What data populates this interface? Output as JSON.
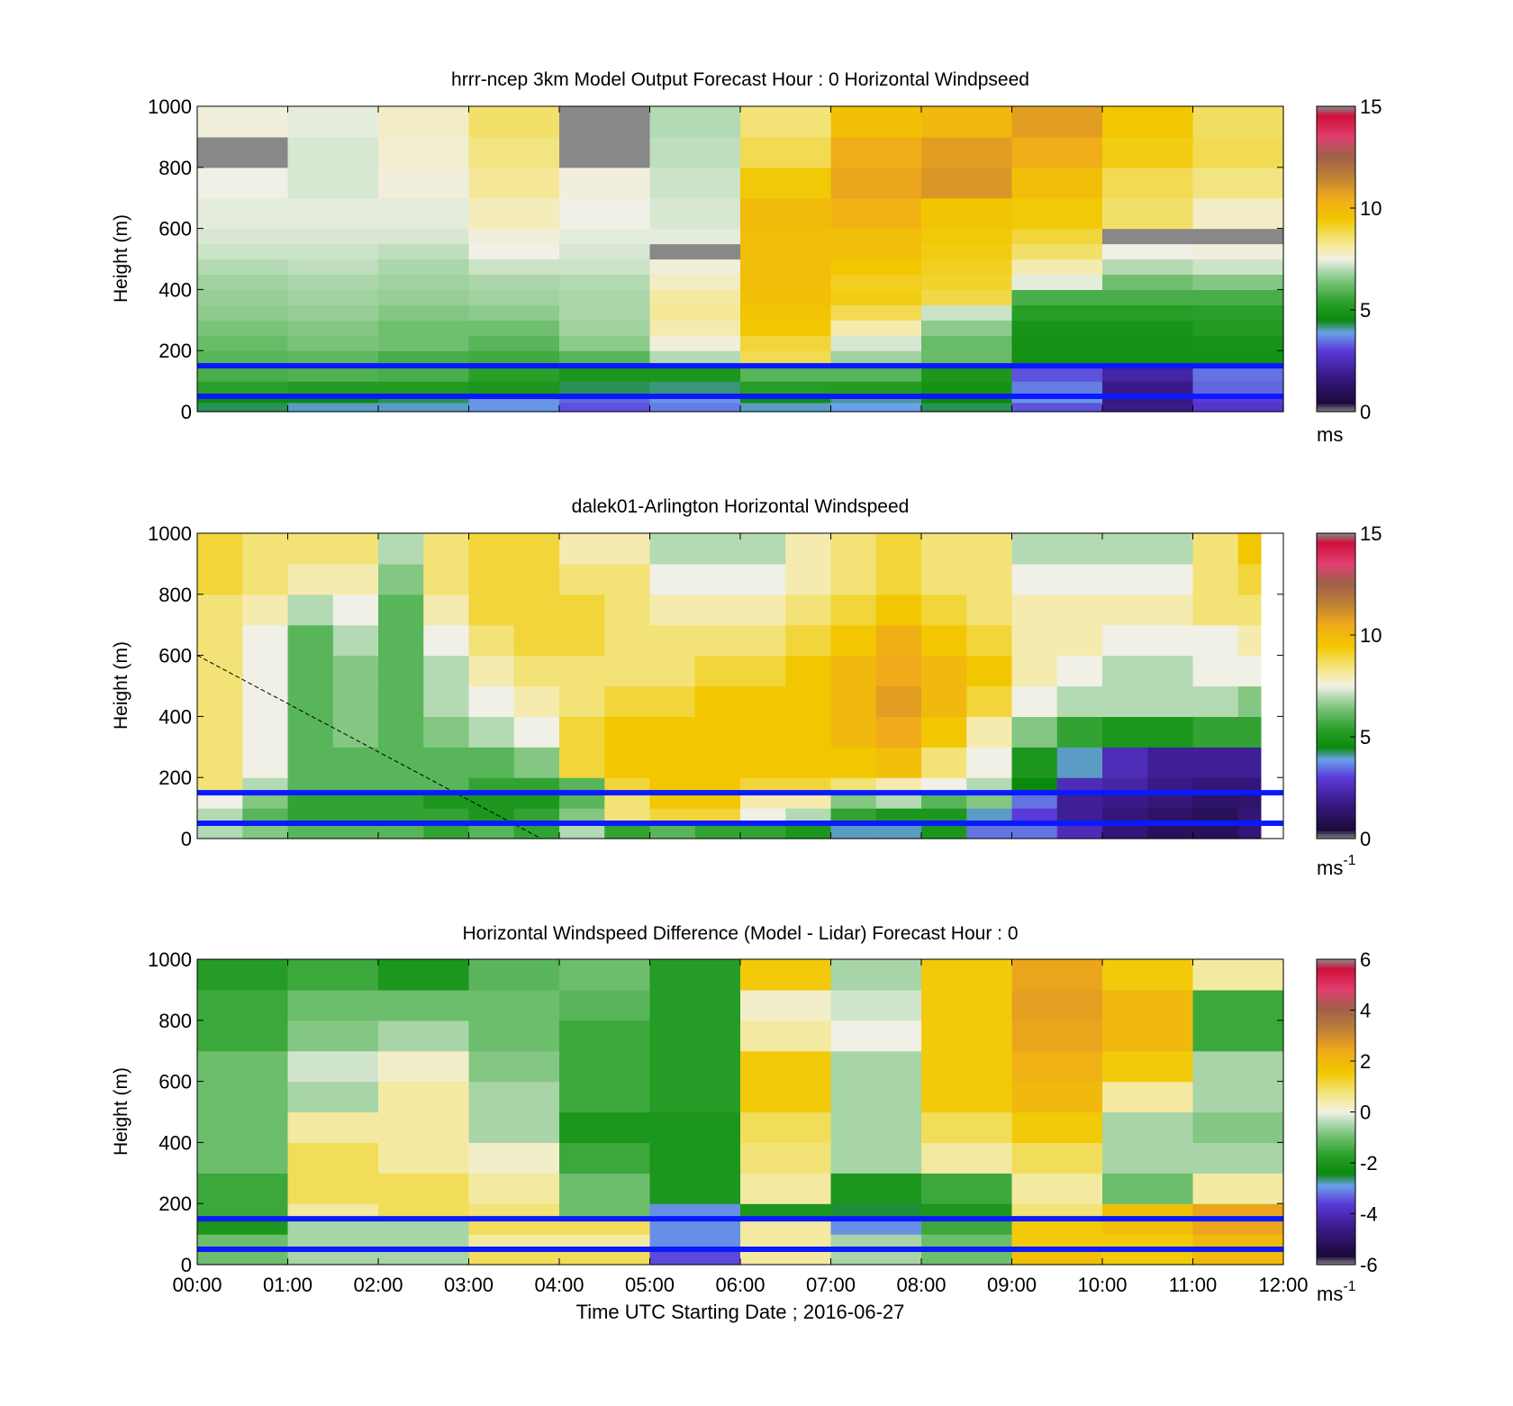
{
  "figure": {
    "xticks": [
      "00:00",
      "01:00",
      "02:00",
      "03:00",
      "04:00",
      "05:00",
      "06:00",
      "07:00",
      "08:00",
      "09:00",
      "10:00",
      "11:00",
      "12:00"
    ],
    "xlabel": "Time UTC  Starting Date ; 2016-06-27"
  },
  "colormap": [
    [
      0,
      "#888888"
    ],
    [
      0.03,
      "#1a0a3a"
    ],
    [
      0.12,
      "#3a1a88"
    ],
    [
      0.2,
      "#5a3ad8"
    ],
    [
      0.26,
      "#6aa0e8"
    ],
    [
      0.3,
      "#0a8a0a"
    ],
    [
      0.36,
      "#2aa02a"
    ],
    [
      0.42,
      "#70bf70"
    ],
    [
      0.47,
      "#b8dcb8"
    ],
    [
      0.5,
      "#f0f0e6"
    ],
    [
      0.53,
      "#f5ecb4"
    ],
    [
      0.58,
      "#f2de60"
    ],
    [
      0.63,
      "#f2c800"
    ],
    [
      0.7,
      "#f0aa1a"
    ],
    [
      0.78,
      "#b87a3a"
    ],
    [
      0.84,
      "#a0604a"
    ],
    [
      0.9,
      "#e04070"
    ],
    [
      0.97,
      "#d0103a"
    ],
    [
      1,
      "#888888"
    ]
  ],
  "chart_data": [
    {
      "type": "heatmap",
      "title": "hrrr-ncep 3km Model Output   Forecast Hour : 0 Horizontal Windpseed",
      "ylabel": "Height (m)",
      "ylim": [
        0,
        1000
      ],
      "yticks": [
        "0",
        "200",
        "400",
        "600",
        "800",
        "1000"
      ],
      "colorbar": {
        "range": [
          0,
          15
        ],
        "ticks": [
          "0",
          "5",
          "10",
          "15"
        ],
        "unit": "ms"
      },
      "reference_lines_m": [
        150,
        50
      ],
      "x_start_hours": [
        0,
        1,
        2,
        3,
        4,
        5,
        6,
        7,
        8,
        9,
        10,
        11
      ],
      "y_edges_m": [
        0,
        30,
        60,
        100,
        150,
        200,
        250,
        300,
        350,
        400,
        450,
        500,
        550,
        600,
        700,
        800,
        900,
        1000
      ],
      "values": [
        [
          4.3,
          4.0,
          4.0,
          3.8,
          3.2,
          3.6,
          4.0,
          3.9,
          4.3,
          3.2,
          1.8,
          2.8
        ],
        [
          4.6,
          4.5,
          4.3,
          3.8,
          3.4,
          3.8,
          4.6,
          4.1,
          4.5,
          3.8,
          1.6,
          3.0
        ],
        [
          5.4,
          5.2,
          5.2,
          5.0,
          4.3,
          4.2,
          5.3,
          5.2,
          4.8,
          3.6,
          1.8,
          3.4
        ],
        [
          5.8,
          5.9,
          5.8,
          5.4,
          5.0,
          5.0,
          6.0,
          6.0,
          5.0,
          3.2,
          2.2,
          3.5
        ],
        [
          6.0,
          6.1,
          5.8,
          5.7,
          6.0,
          7.0,
          8.8,
          6.8,
          6.2,
          4.8,
          4.8,
          4.8
        ],
        [
          6.2,
          6.4,
          6.3,
          6.0,
          6.6,
          7.6,
          9.0,
          7.3,
          6.2,
          4.8,
          4.8,
          4.9
        ],
        [
          6.4,
          6.5,
          6.3,
          6.3,
          6.8,
          8.0,
          9.5,
          8.0,
          6.6,
          4.9,
          4.9,
          5.2
        ],
        [
          6.6,
          6.7,
          6.5,
          6.6,
          6.9,
          8.2,
          9.6,
          8.8,
          7.2,
          5.3,
          5.3,
          5.4
        ],
        [
          6.7,
          6.8,
          6.7,
          6.8,
          6.9,
          8.1,
          9.7,
          9.3,
          8.9,
          5.8,
          5.8,
          5.8
        ],
        [
          6.8,
          6.9,
          6.8,
          6.9,
          7.0,
          7.8,
          9.8,
          9.2,
          9.1,
          7.4,
          6.3,
          6.5
        ],
        [
          7.0,
          7.1,
          6.9,
          7.2,
          7.2,
          7.6,
          9.8,
          9.5,
          9.2,
          8.0,
          7.0,
          7.2
        ],
        [
          7.2,
          7.2,
          7.1,
          7.5,
          7.3,
          15.0,
          9.8,
          9.8,
          9.3,
          8.6,
          7.5,
          7.6
        ],
        [
          7.3,
          7.3,
          7.3,
          7.6,
          7.4,
          7.4,
          9.8,
          9.8,
          9.4,
          9.0,
          15.0,
          15.0
        ],
        [
          7.4,
          7.4,
          7.4,
          7.9,
          7.5,
          7.3,
          9.9,
          10.2,
          9.6,
          9.4,
          8.6,
          7.8
        ],
        [
          7.5,
          7.3,
          7.6,
          8.2,
          7.6,
          7.2,
          9.4,
          10.6,
          11.0,
          9.8,
          8.8,
          8.4
        ],
        [
          15.0,
          7.3,
          7.7,
          8.4,
          15.0,
          7.1,
          8.8,
          10.4,
          10.8,
          10.4,
          9.3,
          8.8
        ],
        [
          7.6,
          7.4,
          7.8,
          8.6,
          15.0,
          7.0,
          8.5,
          9.7,
          10.0,
          10.8,
          9.5,
          8.7
        ]
      ]
    },
    {
      "type": "heatmap",
      "title": "dalek01-Arlington  Horizontal Windspeed",
      "ylabel": "Height (m)",
      "ylim": [
        0,
        1000
      ],
      "yticks": [
        "0",
        "200",
        "400",
        "600",
        "800",
        "1000"
      ],
      "colorbar": {
        "range": [
          0,
          15
        ],
        "ticks": [
          "0",
          "5",
          "10",
          "15"
        ],
        "unit": "ms",
        "unit_exponent": "-1"
      },
      "reference_lines_m": [
        150,
        50
      ],
      "dashed_line": {
        "x_hours": [
          0,
          3.8
        ],
        "y_m": [
          600,
          0
        ]
      },
      "x_start_hours": [
        0,
        0.5,
        1,
        1.5,
        2,
        2.5,
        3,
        3.5,
        4,
        4.5,
        5,
        5.5,
        6,
        6.5,
        7,
        7.5,
        8,
        8.5,
        9,
        9.5,
        10,
        10.5,
        11,
        11.5
      ],
      "x_end_hour": 11.75,
      "y_edges_m": [
        0,
        50,
        100,
        150,
        200,
        300,
        400,
        500,
        600,
        700,
        800,
        900,
        1000
      ],
      "values": [
        [
          7.0,
          6.5,
          6.0,
          6.0,
          6.0,
          5.5,
          6.0,
          5.5,
          7.0,
          5.5,
          6.0,
          5.5,
          5.5,
          5.0,
          4.0,
          4.0,
          5.0,
          3.5,
          3.5,
          2.5,
          1.5,
          1.0,
          1.0,
          1.5
        ],
        [
          7.0,
          6.0,
          5.5,
          5.5,
          5.5,
          5.5,
          5.0,
          5.5,
          6.5,
          8.5,
          9.0,
          9.0,
          7.5,
          7.0,
          5.5,
          5.0,
          5.0,
          4.0,
          3.0,
          2.0,
          1.5,
          1.2,
          1.0,
          1.5
        ],
        [
          7.5,
          6.5,
          5.5,
          5.5,
          5.5,
          5.0,
          5.0,
          5.0,
          6.0,
          8.5,
          9.5,
          9.5,
          8.0,
          8.0,
          6.5,
          7.0,
          6.0,
          6.5,
          3.5,
          2.0,
          1.8,
          1.5,
          1.2,
          1.3
        ],
        [
          8.5,
          7.0,
          6.0,
          6.0,
          6.0,
          6.0,
          5.5,
          5.5,
          6.0,
          9.0,
          9.5,
          9.5,
          9.0,
          9.0,
          8.5,
          8.0,
          7.5,
          7.0,
          4.5,
          2.5,
          2.2,
          1.8,
          1.5,
          1.5
        ],
        [
          8.5,
          7.5,
          6.0,
          6.0,
          6.0,
          6.0,
          6.0,
          6.5,
          9.0,
          9.5,
          9.5,
          9.5,
          9.5,
          9.5,
          9.5,
          9.8,
          8.5,
          7.5,
          5.0,
          4.0,
          2.5,
          2.0,
          2.0,
          2.0
        ],
        [
          8.5,
          7.5,
          6.0,
          6.5,
          6.0,
          6.5,
          7.0,
          7.5,
          9.0,
          9.5,
          9.5,
          9.5,
          9.5,
          9.5,
          10.0,
          10.5,
          9.5,
          8.0,
          6.5,
          5.5,
          5.0,
          5.0,
          5.5,
          5.5
        ],
        [
          8.5,
          7.5,
          6.0,
          6.5,
          6.0,
          7.0,
          7.5,
          8.0,
          8.5,
          9.0,
          9.0,
          9.5,
          9.5,
          9.5,
          10.0,
          10.8,
          10.0,
          9.0,
          7.5,
          7.0,
          7.0,
          7.0,
          7.0,
          6.5
        ],
        [
          8.5,
          7.5,
          6.0,
          6.5,
          6.0,
          7.0,
          8.0,
          8.5,
          8.5,
          8.5,
          8.5,
          9.0,
          9.0,
          9.5,
          10.0,
          10.5,
          10.0,
          9.5,
          8.0,
          7.5,
          7.0,
          7.0,
          7.5,
          7.5
        ],
        [
          8.5,
          7.5,
          6.0,
          7.0,
          6.0,
          7.5,
          8.5,
          9.0,
          9.0,
          8.5,
          8.5,
          8.5,
          8.5,
          9.0,
          9.5,
          10.3,
          9.5,
          9.0,
          8.0,
          8.0,
          7.5,
          7.5,
          7.5,
          8.0
        ],
        [
          8.5,
          8.0,
          7.0,
          7.5,
          6.0,
          8.0,
          9.0,
          9.0,
          9.0,
          8.5,
          8.0,
          8.0,
          8.0,
          8.5,
          9.0,
          9.5,
          9.0,
          8.5,
          8.0,
          8.0,
          8.0,
          8.0,
          8.5,
          8.5
        ],
        [
          9.0,
          8.5,
          8.0,
          8.0,
          6.5,
          8.5,
          9.0,
          9.0,
          8.5,
          8.5,
          7.5,
          7.5,
          7.5,
          8.0,
          8.5,
          9.0,
          8.5,
          8.5,
          7.5,
          7.5,
          7.5,
          7.5,
          8.5,
          9.0
        ],
        [
          9.0,
          8.5,
          8.5,
          8.5,
          7.0,
          8.5,
          9.0,
          9.0,
          8.0,
          8.0,
          7.0,
          7.0,
          7.0,
          8.0,
          8.5,
          9.0,
          8.5,
          8.5,
          7.0,
          7.0,
          7.0,
          7.0,
          8.5,
          9.5
        ]
      ]
    },
    {
      "type": "heatmap",
      "title": "Horizontal Windspeed Difference (Model - Lidar) Forecast Hour : 0",
      "ylabel": "Height (m)",
      "xlabel": "Time UTC  Starting Date ; 2016-06-27",
      "ylim": [
        0,
        1000
      ],
      "yticks": [
        "0",
        "200",
        "400",
        "600",
        "800",
        "1000"
      ],
      "colorbar": {
        "range": [
          -6,
          6
        ],
        "ticks": [
          "-6",
          "-4",
          "-2",
          "0",
          "2",
          "4",
          "6"
        ],
        "unit": "ms",
        "unit_exponent": "-1"
      },
      "reference_lines_m": [
        150,
        50
      ],
      "x_start_hours": [
        0,
        1,
        2,
        3,
        4,
        5,
        6,
        7,
        8,
        9,
        10,
        11
      ],
      "y_edges_m": [
        0,
        50,
        100,
        150,
        200,
        300,
        400,
        500,
        600,
        700,
        800,
        900,
        1000
      ],
      "values": [
        [
          -1.0,
          -0.5,
          -0.5,
          1.0,
          1.0,
          -3.5,
          0.5,
          -0.5,
          -1.0,
          1.8,
          1.5,
          2.0
        ],
        [
          -1.0,
          -0.5,
          -0.5,
          0.5,
          0.5,
          -3.0,
          0.5,
          -0.5,
          -1.0,
          1.5,
          1.5,
          2.0
        ],
        [
          -2.0,
          -0.5,
          -0.5,
          1.0,
          1.0,
          -3.0,
          0.5,
          -3.0,
          -1.5,
          1.5,
          1.8,
          2.5
        ],
        [
          -1.5,
          0.5,
          1.0,
          0.8,
          -1.0,
          -3.0,
          -2.0,
          -2.5,
          -2.0,
          0.8,
          1.8,
          2.5
        ],
        [
          -1.5,
          1.0,
          1.0,
          0.5,
          -1.0,
          -2.0,
          0.5,
          -2.0,
          -1.5,
          0.5,
          -1.0,
          0.5
        ],
        [
          -1.0,
          1.0,
          0.5,
          0.2,
          -1.5,
          -2.0,
          0.8,
          -0.5,
          0.5,
          1.0,
          -0.5,
          -0.5
        ],
        [
          -1.0,
          0.5,
          0.5,
          -0.5,
          -2.0,
          -2.0,
          1.0,
          -0.5,
          1.0,
          1.5,
          -0.5,
          -0.8
        ],
        [
          -1.0,
          -0.5,
          0.5,
          -0.5,
          -1.5,
          -1.8,
          1.5,
          -0.5,
          1.5,
          2.0,
          0.5,
          -0.5
        ],
        [
          -1.0,
          -0.2,
          0.2,
          -0.8,
          -1.5,
          -1.8,
          1.5,
          -0.5,
          1.5,
          2.2,
          1.5,
          -0.5
        ],
        [
          -1.5,
          -0.8,
          -0.5,
          -1.0,
          -1.5,
          -1.8,
          0.5,
          0.0,
          1.5,
          2.5,
          2.0,
          -1.5
        ],
        [
          -1.5,
          -1.0,
          -1.0,
          -1.0,
          -1.2,
          -1.8,
          0.2,
          -0.2,
          1.5,
          2.6,
          2.0,
          -1.5
        ],
        [
          -1.8,
          -1.5,
          -2.0,
          -1.2,
          -1.0,
          -1.8,
          1.5,
          -0.5,
          1.5,
          2.5,
          1.5,
          0.5
        ]
      ]
    }
  ]
}
